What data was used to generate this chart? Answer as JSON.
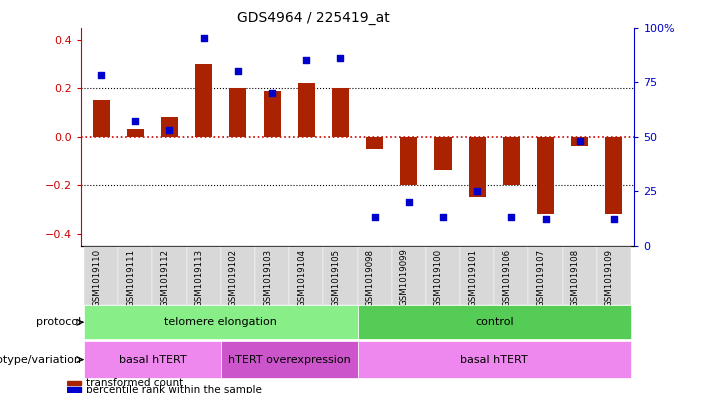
{
  "title": "GDS4964 / 225419_at",
  "samples": [
    "GSM1019110",
    "GSM1019111",
    "GSM1019112",
    "GSM1019113",
    "GSM1019102",
    "GSM1019103",
    "GSM1019104",
    "GSM1019105",
    "GSM1019098",
    "GSM1019099",
    "GSM1019100",
    "GSM1019101",
    "GSM1019106",
    "GSM1019107",
    "GSM1019108",
    "GSM1019109"
  ],
  "bar_values": [
    0.15,
    0.03,
    0.08,
    0.3,
    0.2,
    0.19,
    0.22,
    0.2,
    -0.05,
    -0.2,
    -0.14,
    -0.25,
    -0.2,
    -0.32,
    -0.04,
    -0.32
  ],
  "percentile_values": [
    78,
    57,
    53,
    95,
    80,
    70,
    85,
    86,
    13,
    20,
    13,
    25,
    13,
    12,
    48,
    12
  ],
  "bar_color": "#aa2200",
  "dot_color": "#0000cc",
  "ylim_left": [
    -0.45,
    0.45
  ],
  "ylim_right": [
    0,
    100
  ],
  "yticks_left": [
    -0.4,
    -0.2,
    0.0,
    0.2,
    0.4
  ],
  "yticks_right": [
    0,
    25,
    50,
    75,
    100
  ],
  "ytick_labels_right": [
    "0",
    "25",
    "50",
    "75",
    "100%"
  ],
  "hline_color_zero": "#cc0000",
  "hline_color_grid": "black",
  "hline_positions": [
    -0.2,
    0.2
  ],
  "protocol_groups": [
    {
      "label": "telomere elongation",
      "start": 0,
      "end": 8,
      "color": "#88ee88"
    },
    {
      "label": "control",
      "start": 8,
      "end": 16,
      "color": "#55cc55"
    }
  ],
  "genotype_groups": [
    {
      "label": "basal hTERT",
      "start": 0,
      "end": 4,
      "color": "#ee88ee"
    },
    {
      "label": "hTERT overexpression",
      "start": 4,
      "end": 8,
      "color": "#cc55cc"
    },
    {
      "label": "basal hTERT",
      "start": 8,
      "end": 16,
      "color": "#ee88ee"
    }
  ],
  "legend_items": [
    {
      "label": "transformed count",
      "color": "#aa2200"
    },
    {
      "label": "percentile rank within the sample",
      "color": "#0000cc"
    }
  ],
  "protocol_label": "protocol",
  "genotype_label": "genotype/variation",
  "tick_label_color_right": "#0000cc",
  "tick_label_color_left": "#cc0000",
  "bar_width": 0.5,
  "xlim": [
    -0.6,
    15.6
  ]
}
